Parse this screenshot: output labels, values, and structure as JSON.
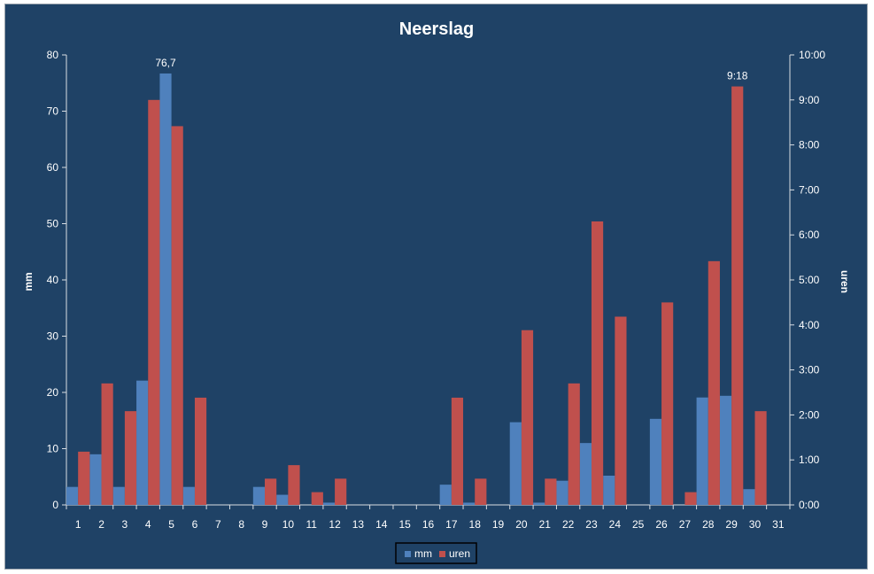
{
  "chart_data": {
    "type": "bar",
    "title": "Neerslag",
    "categories": [
      "1",
      "2",
      "3",
      "4",
      "5",
      "6",
      "7",
      "8",
      "9",
      "10",
      "11",
      "12",
      "13",
      "14",
      "15",
      "16",
      "17",
      "18",
      "19",
      "20",
      "21",
      "22",
      "23",
      "24",
      "25",
      "26",
      "27",
      "28",
      "29",
      "30",
      "31"
    ],
    "series": [
      {
        "name": "mm",
        "axis": "left",
        "color": "#4f81bd",
        "values": [
          3.2,
          9.0,
          3.2,
          22.1,
          76.7,
          3.2,
          0,
          0,
          3.2,
          1.8,
          0,
          0.4,
          0,
          0,
          0,
          0,
          3.6,
          0.4,
          0,
          14.7,
          0.4,
          4.3,
          11.0,
          5.2,
          0,
          15.3,
          0,
          19.1,
          19.4,
          2.8,
          0
        ]
      },
      {
        "name": "uren",
        "axis": "right",
        "unit": "minutes",
        "color": "#c0504d",
        "values": [
          71,
          162,
          125,
          540,
          505,
          143,
          0,
          0,
          35,
          53,
          17,
          35,
          0,
          0,
          0,
          0,
          143,
          35,
          0,
          233,
          35,
          162,
          378,
          251,
          0,
          270,
          17,
          325,
          558,
          125,
          0
        ]
      }
    ],
    "ylabel": "mm",
    "ylim": [
      0,
      80
    ],
    "yticks": [
      "0",
      "10",
      "20",
      "30",
      "40",
      "50",
      "60",
      "70",
      "80"
    ],
    "y2label": "uren",
    "y2lim": [
      0,
      600
    ],
    "y2ticks": [
      "0:00",
      "1:00",
      "2:00",
      "3:00",
      "4:00",
      "5:00",
      "6:00",
      "7:00",
      "8:00",
      "9:00",
      "10:00"
    ],
    "annotations": [
      {
        "series": "mm",
        "category": "5",
        "text": "76,7"
      },
      {
        "series": "uren",
        "category": "29",
        "text": "9:18"
      }
    ],
    "legend_position": "bottom",
    "grid": false
  },
  "colors": {
    "background": "#1f4266",
    "text": "#ffffff",
    "axis": "#d8dde3"
  }
}
